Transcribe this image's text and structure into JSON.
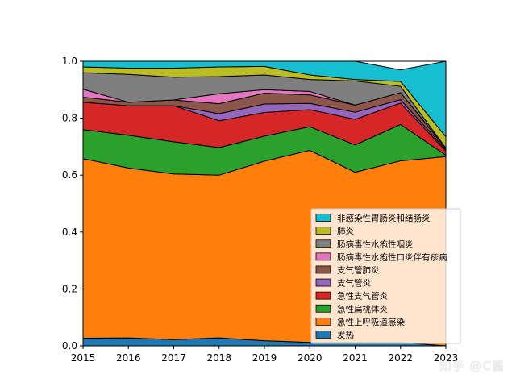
{
  "watermark": "知乎 @C酱",
  "chart_data": {
    "type": "area",
    "stacked": true,
    "normalized": true,
    "title": "",
    "xlabel": "",
    "ylabel": "",
    "x": [
      2015,
      2016,
      2017,
      2018,
      2019,
      2020,
      2021,
      2022,
      2023
    ],
    "xlim": [
      2015,
      2023
    ],
    "ylim": [
      0,
      1.0
    ],
    "yticks": [
      "0.0",
      "0.2",
      "0.4",
      "0.6",
      "0.8",
      "1.0"
    ],
    "xticks": [
      "2015",
      "2016",
      "2017",
      "2018",
      "2019",
      "2020",
      "2021",
      "2022",
      "2023"
    ],
    "grid": false,
    "legend": {
      "placement": "lower-right"
    },
    "series": [
      {
        "name": "发热",
        "color": "#1f77b4",
        "values": [
          0.027,
          0.028,
          0.022,
          0.028,
          0.018,
          0.012,
          0.012,
          0.012,
          0.0
        ]
      },
      {
        "name": "急性上呼吸道感染",
        "color": "#ff7f0e",
        "values": [
          0.631,
          0.597,
          0.582,
          0.572,
          0.631,
          0.675,
          0.598,
          0.638,
          0.665
        ]
      },
      {
        "name": "急性扁桃体炎",
        "color": "#2ca02c",
        "values": [
          0.102,
          0.115,
          0.113,
          0.097,
          0.088,
          0.083,
          0.096,
          0.128,
          0.005
        ]
      },
      {
        "name": "急性支气管炎",
        "color": "#d62728",
        "values": [
          0.096,
          0.104,
          0.127,
          0.094,
          0.083,
          0.06,
          0.09,
          0.075,
          0.015
        ]
      },
      {
        "name": "支气管炎",
        "color": "#9467bd",
        "values": [
          0.0,
          0.0,
          0.0,
          0.025,
          0.03,
          0.022,
          0.025,
          0.012,
          0.005
        ]
      },
      {
        "name": "支气管肺炎",
        "color": "#8c564b",
        "values": [
          0.018,
          0.012,
          0.02,
          0.035,
          0.038,
          0.03,
          0.025,
          0.025,
          0.005
        ]
      },
      {
        "name": "肠病毒性水疱性口炎伴有疹病",
        "color": "#e377c2",
        "values": [
          0.028,
          0.0,
          0.0,
          0.035,
          0.012,
          0.012,
          0.0,
          0.0,
          0.0
        ]
      },
      {
        "name": "肠病毒性水疱性咽炎",
        "color": "#7f7f7f",
        "values": [
          0.058,
          0.098,
          0.08,
          0.06,
          0.052,
          0.042,
          0.085,
          0.022,
          0.0
        ]
      },
      {
        "name": "肺炎",
        "color": "#bcbd22",
        "values": [
          0.02,
          0.022,
          0.032,
          0.034,
          0.03,
          0.016,
          0.005,
          0.017,
          0.04
        ]
      },
      {
        "name": "非感染性胃肠炎和结肠炎",
        "color": "#17becf",
        "values": [
          0.02,
          0.024,
          0.024,
          0.02,
          0.018,
          0.048,
          0.064,
          0.041,
          0.265
        ]
      }
    ]
  }
}
